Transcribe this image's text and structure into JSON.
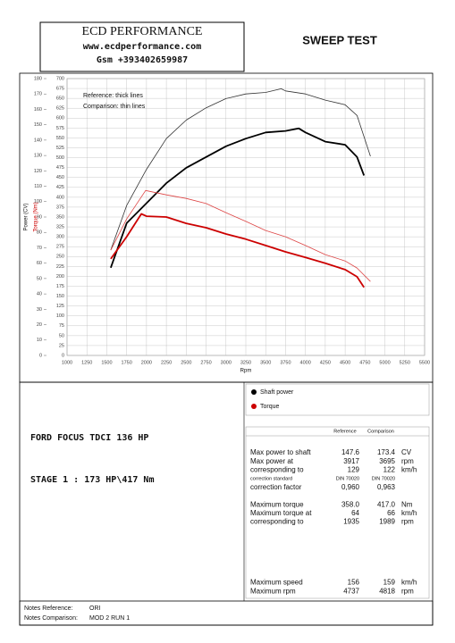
{
  "header": {
    "company": "ECD PERFORMANCE",
    "website": "www.ecdperformance.com",
    "phone": "Gsm +393402659987",
    "title": "SWEEP TEST"
  },
  "chart_data": {
    "type": "line",
    "x_label": "Rpm",
    "y_label": "Power (CV)",
    "y2_label": "Torque (Nm)",
    "line_key": [
      "Reference: thick lines",
      "Comparison: thin lines"
    ],
    "legend": [
      {
        "label": "Shaft power",
        "color": "#000000"
      },
      {
        "label": "Torque",
        "color": "#cc0000"
      }
    ],
    "xlim": [
      1000,
      5500
    ],
    "xticks": [
      1000,
      1250,
      1500,
      1750,
      2000,
      2250,
      2500,
      2750,
      3000,
      3250,
      3500,
      3750,
      4000,
      4250,
      4500,
      4750,
      5000,
      5250,
      5500
    ],
    "ylim": [
      0,
      180
    ],
    "yticks": [
      0,
      10,
      20,
      30,
      40,
      50,
      60,
      70,
      80,
      90,
      100,
      110,
      120,
      130,
      140,
      150,
      160,
      170,
      180
    ],
    "y2lim": [
      0,
      700
    ],
    "y2ticks": [
      0,
      25,
      50,
      75,
      100,
      125,
      150,
      175,
      200,
      225,
      250,
      275,
      300,
      325,
      350,
      375,
      400,
      425,
      450,
      475,
      500,
      525,
      550,
      575,
      600,
      625,
      650,
      675,
      700
    ],
    "grid": true,
    "series": [
      {
        "color": "#000000",
        "line_width": 1.8,
        "axis": "y",
        "x": [
          1550,
          1750,
          2000,
          2250,
          2500,
          2750,
          3000,
          3250,
          3500,
          3750,
          3917,
          4000,
          4250,
          4500,
          4650,
          4737
        ],
        "values": [
          57,
          86,
          99,
          112,
          122,
          129,
          136,
          141,
          145,
          146,
          147.6,
          145,
          139,
          137,
          129,
          117
        ]
      },
      {
        "color": "#333333",
        "line_width": 0.8,
        "axis": "y",
        "x": [
          1550,
          1750,
          2000,
          2250,
          2500,
          2750,
          3000,
          3250,
          3500,
          3695,
          3750,
          4000,
          4250,
          4500,
          4650,
          4818
        ],
        "values": [
          68.5,
          97.5,
          121,
          141,
          153,
          161,
          167,
          170,
          171,
          173.4,
          172,
          170,
          166,
          163,
          156,
          129.5
        ]
      },
      {
        "color": "#cc0000",
        "line_width": 1.8,
        "axis": "y2",
        "x": [
          1550,
          1750,
          1935,
          2000,
          2250,
          2500,
          2750,
          3000,
          3250,
          3500,
          3750,
          4000,
          4250,
          4500,
          4650,
          4737
        ],
        "values": [
          244,
          300,
          358,
          352,
          350,
          334,
          323,
          307,
          294,
          278,
          262,
          248,
          233,
          217,
          199,
          172
        ]
      },
      {
        "color": "#dd4444",
        "line_width": 0.8,
        "axis": "y2",
        "x": [
          1550,
          1750,
          1989,
          2250,
          2500,
          2750,
          3000,
          3250,
          3500,
          3750,
          4000,
          4250,
          4500,
          4650,
          4818
        ],
        "values": [
          266,
          345,
          417,
          406,
          397,
          384,
          361,
          339,
          316,
          300,
          278,
          255,
          239,
          221,
          187
        ]
      }
    ]
  },
  "vehicle": {
    "model": "FORD FOCUS TDCI 136 HP",
    "stage": "STAGE 1 : 173 HP\\417 Nm"
  },
  "table": {
    "columns": [
      "Reference",
      "Comparison"
    ],
    "rows": [
      [
        "Max power to shaft",
        "147.6",
        "173.4",
        "CV"
      ],
      [
        "Max power at",
        "3917",
        "3695",
        "rpm"
      ],
      [
        "corresponding to",
        "129",
        "122",
        "km/h"
      ],
      [
        "correction standard",
        "DIN 70020",
        "DIN 70020"
      ],
      [
        "correction factor",
        "0,960",
        "0,963"
      ],
      [
        "Maximum torque",
        "358.0",
        "417.0",
        "Nm"
      ],
      [
        "Maximum torque at",
        "64",
        "66",
        "km/h"
      ],
      [
        "corresponding to",
        "1935",
        "1989",
        "rpm"
      ],
      [
        "Maximum speed",
        "156",
        "159",
        "km/h"
      ],
      [
        "Maximum rpm",
        "4737",
        "4818",
        "rpm"
      ]
    ]
  },
  "notes": {
    "reference_label": "Notes Reference:",
    "reference": "ORI",
    "comparison_label": "Notes Comparison:",
    "comparison": "MOD 2 RUN 1"
  }
}
